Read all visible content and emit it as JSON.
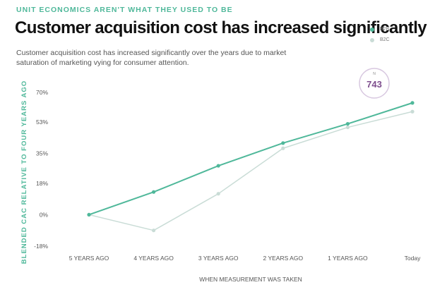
{
  "kicker": "UNIT ECONOMICS AREN'T WHAT THEY USED TO BE",
  "title": "Customer acquisition cost has increased significantly",
  "subtitle": "Customer acquisition cost has increased significantly over the years due to market saturation of marketing vying for consumer attention.",
  "annotation": {
    "small": "N",
    "value": "743"
  },
  "chart_data": {
    "type": "line",
    "title": "Customer acquisition cost has increased significantly",
    "xlabel": "WHEN MEASUREMENT WAS TAKEN",
    "ylabel": "BLENDED CAC RELATIVE TO FOUR YEARS AGO",
    "categories": [
      "5 YEARS AGO",
      "4 YEARS AGO",
      "3 YEARS AGO",
      "2 YEARS AGO",
      "1 YEARS AGO",
      "Today"
    ],
    "ylim": [
      -18,
      70
    ],
    "yticks": [
      -18,
      0,
      18,
      35,
      53,
      70
    ],
    "ytick_labels": [
      "-18%",
      "0%",
      "18%",
      "35%",
      "53%",
      "70%"
    ],
    "legend_position": "top-right",
    "grid": false,
    "series": [
      {
        "name": "B2B",
        "color": "#4fb89a",
        "values": [
          0,
          13,
          28,
          41,
          52,
          64
        ]
      },
      {
        "name": "B2C",
        "color": "#c9dcd6",
        "values": [
          0,
          -9,
          12,
          38,
          50,
          59
        ]
      }
    ]
  }
}
